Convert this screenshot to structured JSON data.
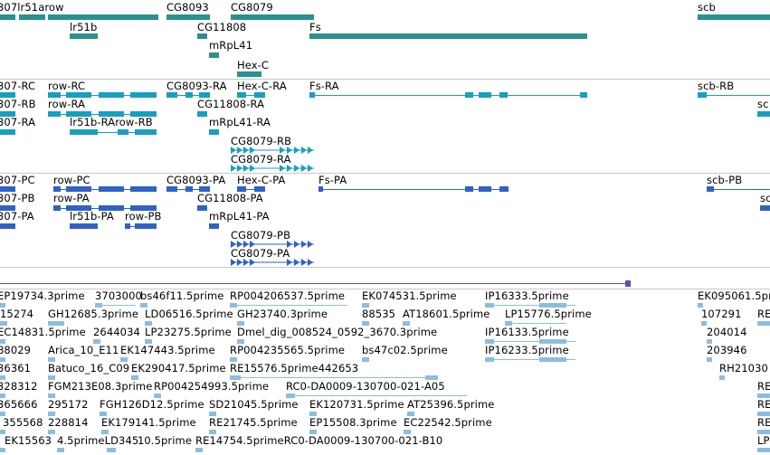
{
  "genes": [
    "307lr51arow",
    "CG8093",
    "CG8079",
    "scb",
    "lr51b",
    "CG11808",
    "Fs",
    "mRpL41",
    "Hex-C"
  ],
  "transcripts": [
    "307-RC",
    "row-RC",
    "CG8093-RA",
    "Hex-C-RA",
    "Fs-RA",
    "scb-RB",
    "307-RB",
    "row-RA",
    "CG11808-RA",
    "sc",
    "307-RA",
    "lr51b-RArow-RB",
    "mRpL41-RA",
    "CG8079-RB",
    "CG8079-RA"
  ],
  "proteins": [
    "307-PC",
    "row-PC",
    "CG8093-PA",
    "Hex-C-PA",
    "Fs-PA",
    "scb-PB",
    "307-PB",
    "row-PA",
    "CG11808-PA",
    "sc",
    "307-PA",
    "lr51b-PA",
    "row-PB",
    "mRpL41-PA",
    "CG8079-PB",
    "CG8079-PA"
  ],
  "ests": [
    "EP19734.3prime",
    "3703000",
    "bs46f11.5prime",
    "RP004206537.5prime",
    "EK074531.5prime",
    "IP16333.5prime",
    "EK095061.5prime",
    "15274",
    "GH12685.3prime",
    "LD06516.5prime",
    "GH23740.3prime",
    "88535",
    "AT18601.5prime",
    "LP15776.5prime",
    "107291",
    "RE",
    "EC14831.5prime",
    "2644034",
    "LP23275.5prime",
    "Dmel_dig_008524_0592_3670.3prime",
    "IP16133.5prime",
    "204014",
    "88029",
    "Arica_10_E11",
    "EK147443.5prime",
    "RP004235565.5prime",
    "bs47c02.5prime",
    "IP16233.5prime",
    "203946",
    "36361",
    "Batuco_16_C09",
    "EK290417.5prime",
    "RE15576.5prime442653",
    "RH21030",
    "328312",
    "FGM213E08.3prime",
    "RP004254993.5prime",
    "RC0-DA0009-130700-021-A05",
    "RE",
    "365666",
    "295172",
    "FGH126D12.5prime",
    "SD21045.5prime",
    "EK120731.5prime",
    "AT25396.5prime",
    "RE",
    "355568",
    "228814",
    "EK179141.5prime",
    "RE21745.5prime",
    "EP15508.3prime",
    "EC22542.5prime",
    "RE",
    "EK15563",
    "4.5primeLD345",
    "10.5prime",
    "RE14754.5primeRC0-DA0009-130700-021-B10",
    "LP"
  ],
  "colors": {
    "gene": "#2a9090",
    "transcript": "#16a0c0",
    "protein": "#2f62c6",
    "variant": "#6a4aa8",
    "est": "#8cbde0",
    "separator": "#c8c8c8"
  }
}
